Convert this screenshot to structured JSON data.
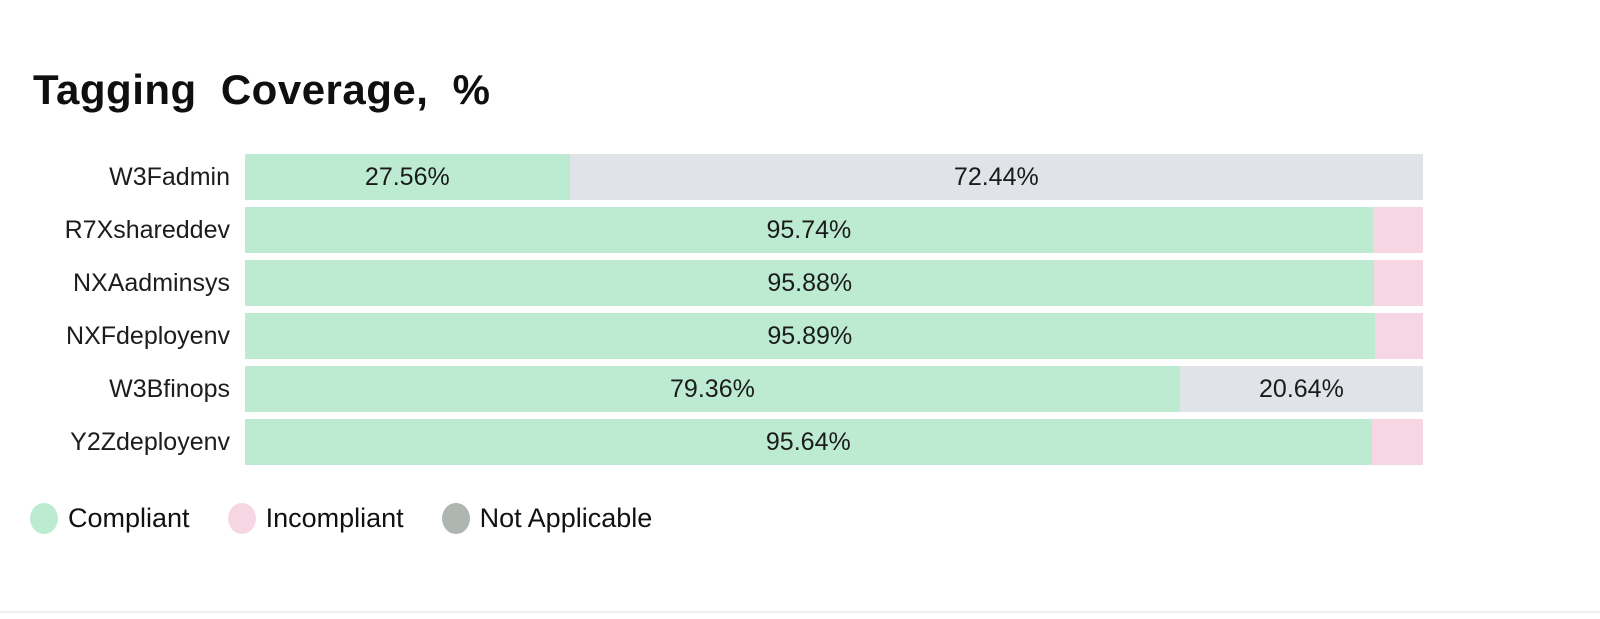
{
  "title": "Tagging Coverage, %",
  "colors": {
    "background": "#ffffff",
    "compliant": "#bcebd2",
    "incompliant": "#f7d6e4",
    "not_applicable": "#e0e3e8",
    "not_applicable_legend_dot": "#afb6b2",
    "text": "#141414",
    "divider": "#eef0f3"
  },
  "chart_data": {
    "type": "bar",
    "orientation": "horizontal",
    "stacked": true,
    "title": "Tagging Coverage, %",
    "xlim": [
      0,
      100
    ],
    "unit": "%",
    "grid": false,
    "legend_position": "bottom-left",
    "categories": [
      "W3Fadmin",
      "R7Xshareddev",
      "NXAadminsys",
      "NXFdeployenv",
      "W3Bfinops",
      "Y2Zdeployenv"
    ],
    "series": [
      {
        "name": "Compliant",
        "values": [
          27.56,
          95.74,
          95.88,
          95.89,
          79.36,
          95.64
        ]
      },
      {
        "name": "Incompliant",
        "values": [
          0,
          4.26,
          4.12,
          4.11,
          0,
          4.36
        ]
      },
      {
        "name": "Not Applicable",
        "values": [
          72.44,
          0,
          0,
          0,
          20.64,
          0
        ]
      }
    ],
    "visible_bar_labels": {
      "W3Fadmin": [
        "27.56%",
        "72.44%"
      ],
      "R7Xshareddev": [
        "95.74%"
      ],
      "NXAadminsys": [
        "95.88%"
      ],
      "NXFdeployenv": [
        "95.89%"
      ],
      "W3Bfinops": [
        "79.36%",
        "20.64%"
      ],
      "Y2Zdeployenv": [
        "95.64%"
      ]
    }
  },
  "rows": [
    {
      "label": "W3Fadmin",
      "segments": [
        {
          "series": "compliant",
          "value": 27.56,
          "text": "27.56%"
        },
        {
          "series": "not_applicable",
          "value": 72.44,
          "text": "72.44%"
        }
      ]
    },
    {
      "label": "R7Xshareddev",
      "segments": [
        {
          "series": "compliant",
          "value": 95.74,
          "text": "95.74%"
        },
        {
          "series": "incompliant",
          "value": 4.26,
          "text": ""
        }
      ]
    },
    {
      "label": "NXAadminsys",
      "segments": [
        {
          "series": "compliant",
          "value": 95.88,
          "text": "95.88%"
        },
        {
          "series": "incompliant",
          "value": 4.12,
          "text": ""
        }
      ]
    },
    {
      "label": "NXFdeployenv",
      "segments": [
        {
          "series": "compliant",
          "value": 95.89,
          "text": "95.89%"
        },
        {
          "series": "incompliant",
          "value": 4.11,
          "text": ""
        }
      ]
    },
    {
      "label": "W3Bfinops",
      "segments": [
        {
          "series": "compliant",
          "value": 79.36,
          "text": "79.36%"
        },
        {
          "series": "not_applicable",
          "value": 20.64,
          "text": "20.64%"
        }
      ]
    },
    {
      "label": "Y2Zdeployenv",
      "segments": [
        {
          "series": "compliant",
          "value": 95.64,
          "text": "95.64%"
        },
        {
          "series": "incompliant",
          "value": 4.36,
          "text": ""
        }
      ]
    }
  ],
  "legend": {
    "items": [
      {
        "id": "compliant",
        "label": "Compliant",
        "color": "#bcebd2"
      },
      {
        "id": "incompliant",
        "label": "Incompliant",
        "color": "#f7d6e4"
      },
      {
        "id": "not_applicable",
        "label": "Not Applicable",
        "color": "#afb6b2"
      }
    ]
  }
}
